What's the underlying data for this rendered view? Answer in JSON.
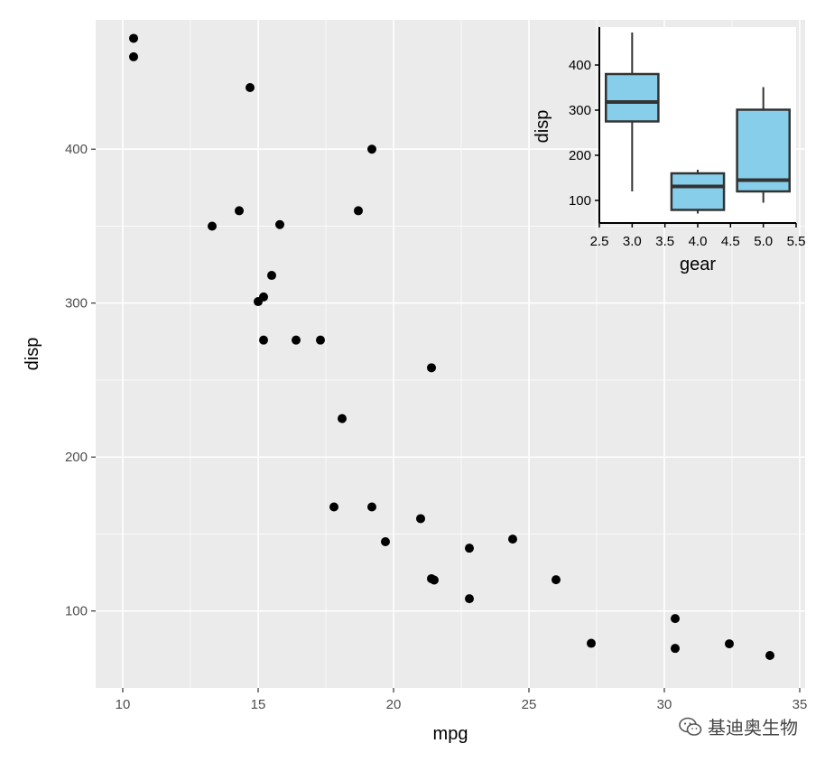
{
  "chart_data": [
    {
      "type": "scatter",
      "xlabel": "mpg",
      "ylabel": "disp",
      "xlim": [
        9,
        35.2
      ],
      "ylim": [
        50,
        484
      ],
      "x_ticks": [
        10,
        15,
        20,
        25,
        30,
        35
      ],
      "y_ticks": [
        100,
        200,
        300,
        400
      ],
      "grid": true,
      "point_color": "#000000",
      "points": [
        {
          "x": 10.4,
          "y": 472
        },
        {
          "x": 10.4,
          "y": 460
        },
        {
          "x": 14.7,
          "y": 440
        },
        {
          "x": 19.2,
          "y": 400
        },
        {
          "x": 13.3,
          "y": 350
        },
        {
          "x": 14.3,
          "y": 360
        },
        {
          "x": 15.8,
          "y": 351
        },
        {
          "x": 18.7,
          "y": 360
        },
        {
          "x": 15.5,
          "y": 318
        },
        {
          "x": 15.2,
          "y": 304
        },
        {
          "x": 15.0,
          "y": 301
        },
        {
          "x": 15.2,
          "y": 276
        },
        {
          "x": 16.4,
          "y": 276
        },
        {
          "x": 17.3,
          "y": 276
        },
        {
          "x": 21.4,
          "y": 258
        },
        {
          "x": 18.1,
          "y": 225
        },
        {
          "x": 17.8,
          "y": 167.6
        },
        {
          "x": 19.2,
          "y": 167.6
        },
        {
          "x": 21.0,
          "y": 160
        },
        {
          "x": 19.7,
          "y": 145
        },
        {
          "x": 22.8,
          "y": 140.8
        },
        {
          "x": 24.4,
          "y": 146.7
        },
        {
          "x": 21.4,
          "y": 121
        },
        {
          "x": 21.5,
          "y": 120.1
        },
        {
          "x": 26.0,
          "y": 120.3
        },
        {
          "x": 22.8,
          "y": 108
        },
        {
          "x": 27.3,
          "y": 79
        },
        {
          "x": 30.4,
          "y": 95.1
        },
        {
          "x": 30.4,
          "y": 75.7
        },
        {
          "x": 32.4,
          "y": 78.7
        },
        {
          "x": 33.9,
          "y": 71.1
        }
      ]
    },
    {
      "type": "box",
      "xlabel": "gear",
      "ylabel": "disp",
      "xlim": [
        2.5,
        5.5
      ],
      "ylim": [
        50,
        484
      ],
      "x_ticks": [
        "2.5",
        "3.0",
        "3.5",
        "4.0",
        "4.5",
        "5.0",
        "5.5"
      ],
      "y_ticks": [
        100,
        200,
        300,
        400
      ],
      "fill": "#87ceeb",
      "boxes": [
        {
          "x": 3,
          "min": 120,
          "q1": 275,
          "median": 318,
          "q3": 380,
          "max": 472
        },
        {
          "x": 4,
          "min": 71,
          "q1": 79,
          "median": 131,
          "q3": 160,
          "max": 168
        },
        {
          "x": 5,
          "min": 95,
          "q1": 120,
          "median": 145,
          "q3": 301,
          "max": 351
        }
      ]
    }
  ],
  "watermark": {
    "text": "基迪奥生物",
    "icon": "wechat-icon"
  }
}
